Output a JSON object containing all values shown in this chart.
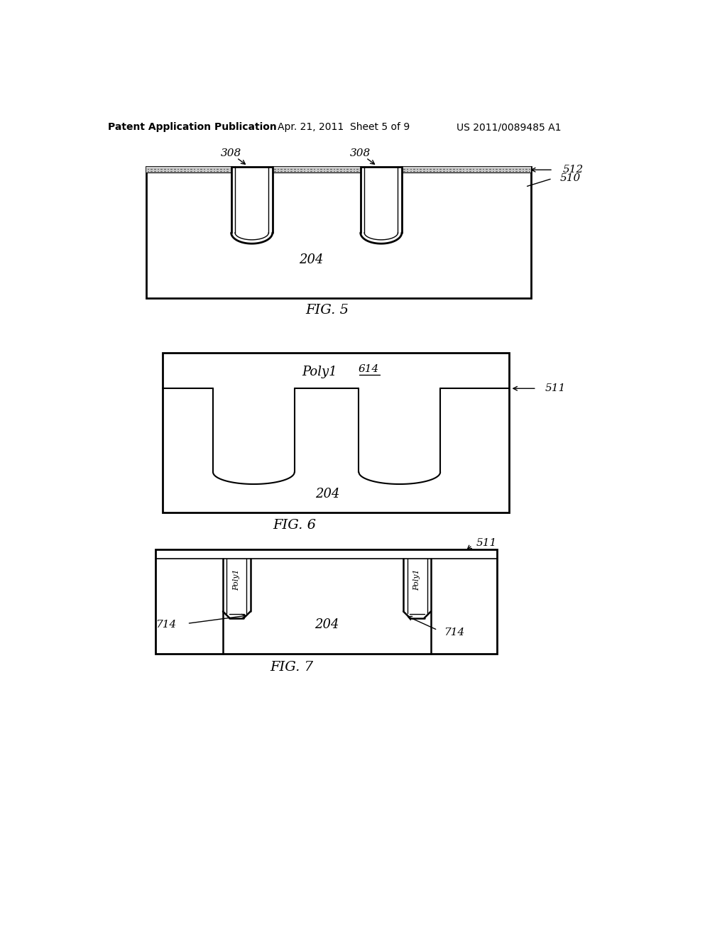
{
  "background_color": "#ffffff",
  "header_left": "Patent Application Publication",
  "header_mid": "Apr. 21, 2011  Sheet 5 of 9",
  "header_right": "US 2011/0089485 A1",
  "fig5_title": "FIG. 5",
  "fig6_title": "FIG. 6",
  "fig7_title": "FIG. 7",
  "label_308a": "308",
  "label_308b": "308",
  "label_204a": "204",
  "label_204b": "204",
  "label_204c": "204",
  "label_510": "510",
  "label_512": "512",
  "label_511a": "511",
  "label_511b": "511",
  "label_614": "614",
  "label_714a": "714",
  "label_714b": "714"
}
